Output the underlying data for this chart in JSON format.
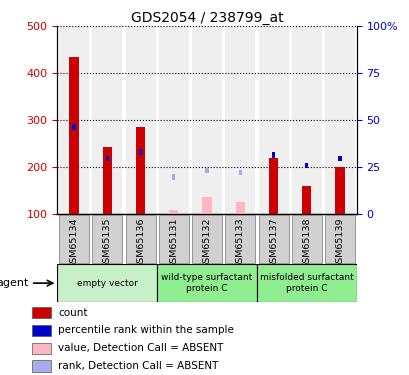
{
  "title": "GDS2054 / 238799_at",
  "samples": [
    "GSM65134",
    "GSM65135",
    "GSM65136",
    "GSM65131",
    "GSM65132",
    "GSM65133",
    "GSM65137",
    "GSM65138",
    "GSM65139"
  ],
  "count_values": [
    435,
    243,
    285,
    null,
    null,
    null,
    220,
    160,
    200
  ],
  "count_absent": [
    null,
    null,
    null,
    108,
    135,
    125,
    null,
    null,
    null
  ],
  "rank_values": [
    285,
    218,
    232,
    null,
    null,
    null,
    226,
    203,
    218
  ],
  "rank_absent": [
    null,
    null,
    null,
    178,
    192,
    188,
    null,
    null,
    null
  ],
  "ylim_left": [
    100,
    500
  ],
  "ylim_right": [
    0,
    100
  ],
  "yticks_left": [
    100,
    200,
    300,
    400,
    500
  ],
  "yticks_right": [
    0,
    25,
    50,
    75,
    100
  ],
  "ytick_labels_right": [
    "0",
    "25",
    "50",
    "75",
    "100%"
  ],
  "color_count": "#cc0000",
  "color_rank": "#0000cc",
  "color_count_absent": "#ffb6c1",
  "color_rank_absent": "#aaaaee",
  "groups_info": [
    {
      "start": 0,
      "end": 3,
      "label": "empty vector",
      "color": "#c8f0c8"
    },
    {
      "start": 3,
      "end": 6,
      "label": "wild-type surfactant\nprotein C",
      "color": "#90ee90"
    },
    {
      "start": 6,
      "end": 9,
      "label": "misfolded surfactant\nprotein C",
      "color": "#90ee90"
    }
  ],
  "legend": [
    {
      "label": "count",
      "color": "#cc0000"
    },
    {
      "label": "percentile rank within the sample",
      "color": "#0000cc"
    },
    {
      "label": "value, Detection Call = ABSENT",
      "color": "#ffb6c1"
    },
    {
      "label": "rank, Detection Call = ABSENT",
      "color": "#aaaaee"
    }
  ]
}
